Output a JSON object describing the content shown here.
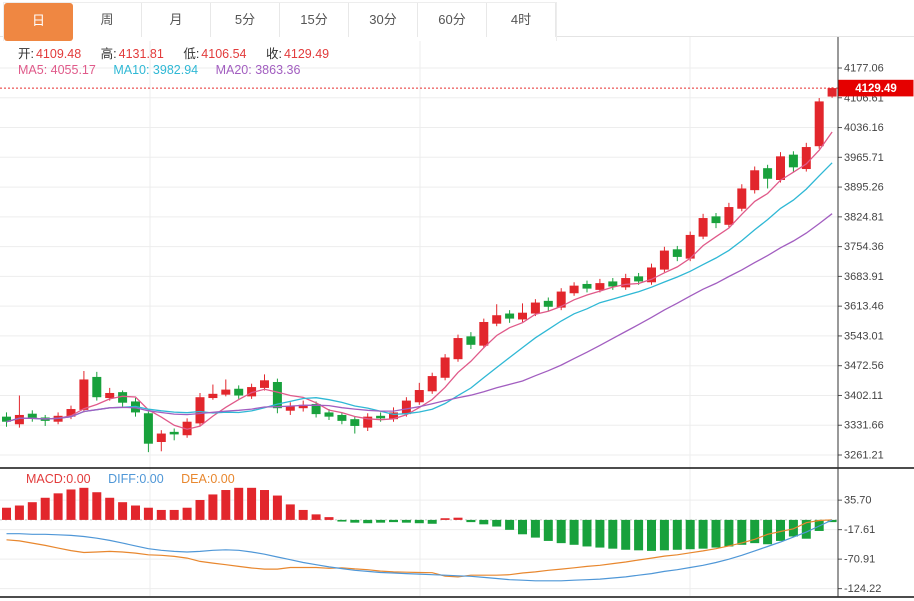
{
  "tabs": [
    {
      "key": "day",
      "label": "日",
      "active": true
    },
    {
      "key": "week",
      "label": "周",
      "active": false
    },
    {
      "key": "month",
      "label": "月",
      "active": false
    },
    {
      "key": "5min",
      "label": "5分",
      "active": false
    },
    {
      "key": "15min",
      "label": "15分",
      "active": false
    },
    {
      "key": "30min",
      "label": "30分",
      "active": false
    },
    {
      "key": "60min",
      "label": "60分",
      "active": false
    },
    {
      "key": "4hour",
      "label": "4时",
      "active": false
    }
  ],
  "ohlc": {
    "open_label": "开:",
    "open": "4109.48",
    "high_label": "高:",
    "high": "4131.81",
    "low_label": "低:",
    "low": "4106.54",
    "close_label": "收:",
    "close": "4129.49"
  },
  "ma_legend": {
    "ma5": "MA5: 4055.17",
    "ma10": "MA10: 3982.94",
    "ma20": "MA20: 3863.36"
  },
  "macd_legend": {
    "macd": "MACD:0.00",
    "diff": "DIFF:0.00",
    "dea": "DEA:0.00"
  },
  "price_badge": "4129.49",
  "colors": {
    "up": "#e2262c",
    "down": "#18a13c",
    "ma5": "#e05a8a",
    "ma10": "#2fb8d5",
    "ma20": "#a25ec0",
    "diff": "#4f97d7",
    "dea": "#e8872e",
    "badge": "#e50000",
    "accent_tab": "#ef8742",
    "value_red": "#e23b3b",
    "grid": "#ededed",
    "axis": "#444",
    "dark_line": "#111"
  },
  "chart_data": {
    "type": "candlestick",
    "title": "",
    "legend_position": "top-left-overlay",
    "grid": true,
    "panels": [
      {
        "name": "price",
        "y_ticks": [
          "4177.06",
          "4106.61",
          "4036.16",
          "3965.71",
          "3895.26",
          "3824.81",
          "3754.36",
          "3683.91",
          "3613.46",
          "3543.01",
          "3472.56",
          "3402.11",
          "3331.66",
          "3261.21"
        ],
        "current_price": 4129.49,
        "ma_overlays": [
          {
            "name": "MA5",
            "period": 5,
            "value": "4055.17"
          },
          {
            "name": "MA10",
            "period": 10,
            "value": "3982.94"
          },
          {
            "name": "MA20",
            "period": 20,
            "value": "3863.36"
          }
        ],
        "candles": [
          [
            3352,
            3362,
            3328,
            3340
          ],
          [
            3334,
            3402,
            3326,
            3356
          ],
          [
            3359,
            3367,
            3340,
            3348
          ],
          [
            3350,
            3356,
            3330,
            3342
          ],
          [
            3340,
            3362,
            3334,
            3354
          ],
          [
            3352,
            3378,
            3346,
            3370
          ],
          [
            3368,
            3460,
            3362,
            3440
          ],
          [
            3446,
            3458,
            3390,
            3398
          ],
          [
            3396,
            3420,
            3390,
            3408
          ],
          [
            3410,
            3414,
            3376,
            3385
          ],
          [
            3388,
            3396,
            3352,
            3362
          ],
          [
            3360,
            3364,
            3268,
            3288
          ],
          [
            3292,
            3320,
            3270,
            3312
          ],
          [
            3316,
            3324,
            3296,
            3310
          ],
          [
            3308,
            3348,
            3302,
            3340
          ],
          [
            3336,
            3408,
            3330,
            3398
          ],
          [
            3396,
            3428,
            3392,
            3406
          ],
          [
            3404,
            3440,
            3400,
            3416
          ],
          [
            3418,
            3426,
            3394,
            3402
          ],
          [
            3400,
            3430,
            3394,
            3422
          ],
          [
            3420,
            3452,
            3414,
            3438
          ],
          [
            3434,
            3442,
            3360,
            3372
          ],
          [
            3366,
            3386,
            3356,
            3376
          ],
          [
            3372,
            3390,
            3364,
            3380
          ],
          [
            3382,
            3388,
            3350,
            3358
          ],
          [
            3362,
            3370,
            3344,
            3352
          ],
          [
            3356,
            3362,
            3334,
            3342
          ],
          [
            3346,
            3352,
            3312,
            3330
          ],
          [
            3326,
            3360,
            3318,
            3352
          ],
          [
            3354,
            3362,
            3340,
            3348
          ],
          [
            3346,
            3374,
            3340,
            3362
          ],
          [
            3358,
            3398,
            3352,
            3390
          ],
          [
            3386,
            3432,
            3380,
            3415
          ],
          [
            3412,
            3456,
            3406,
            3448
          ],
          [
            3444,
            3500,
            3438,
            3492
          ],
          [
            3488,
            3546,
            3482,
            3538
          ],
          [
            3542,
            3552,
            3512,
            3522
          ],
          [
            3520,
            3584,
            3514,
            3576
          ],
          [
            3572,
            3618,
            3566,
            3592
          ],
          [
            3596,
            3604,
            3574,
            3584
          ],
          [
            3582,
            3620,
            3576,
            3598
          ],
          [
            3596,
            3630,
            3590,
            3622
          ],
          [
            3626,
            3634,
            3602,
            3612
          ],
          [
            3610,
            3656,
            3604,
            3648
          ],
          [
            3644,
            3670,
            3638,
            3662
          ],
          [
            3666,
            3674,
            3646,
            3655
          ],
          [
            3652,
            3678,
            3646,
            3668
          ],
          [
            3672,
            3680,
            3652,
            3660
          ],
          [
            3658,
            3690,
            3652,
            3680
          ],
          [
            3684,
            3692,
            3664,
            3672
          ],
          [
            3670,
            3714,
            3664,
            3705
          ],
          [
            3700,
            3754,
            3694,
            3745
          ],
          [
            3748,
            3756,
            3720,
            3730
          ],
          [
            3726,
            3790,
            3720,
            3782
          ],
          [
            3778,
            3832,
            3772,
            3822
          ],
          [
            3826,
            3834,
            3798,
            3810
          ],
          [
            3806,
            3858,
            3800,
            3848
          ],
          [
            3844,
            3902,
            3838,
            3892
          ],
          [
            3888,
            3944,
            3880,
            3935
          ],
          [
            3940,
            3948,
            3892,
            3915
          ],
          [
            3912,
            3978,
            3906,
            3968
          ],
          [
            3972,
            3980,
            3930,
            3942
          ],
          [
            3938,
            4000,
            3932,
            3990
          ],
          [
            3992,
            4106,
            3986,
            4098
          ],
          [
            4109.48,
            4131.81,
            4106.54,
            4129.49
          ]
        ]
      },
      {
        "name": "macd",
        "y_ticks": [
          "35.70",
          "-17.61",
          "-70.91",
          "-124.22"
        ],
        "histogram": [
          22,
          26,
          32,
          40,
          48,
          55,
          58,
          50,
          40,
          32,
          26,
          22,
          18,
          18,
          22,
          36,
          46,
          54,
          58,
          58,
          54,
          44,
          28,
          18,
          10,
          5,
          -3,
          -5,
          -6,
          -5,
          -4,
          -5,
          -6,
          -7,
          3,
          4,
          -4,
          -8,
          -12,
          -18,
          -26,
          -32,
          -38,
          -42,
          -45,
          -48,
          -50,
          -52,
          -54,
          -55,
          -56,
          -55,
          -54,
          -53,
          -52,
          -50,
          -48,
          -45,
          -42,
          -44,
          -38,
          -30,
          -34,
          -20,
          -4
        ],
        "diff_line": [
          -25,
          -25,
          -26,
          -26,
          -27,
          -28,
          -30,
          -33,
          -37,
          -42,
          -47,
          -52,
          -55,
          -57,
          -58,
          -57,
          -55,
          -54,
          -55,
          -58,
          -62,
          -67,
          -72,
          -77,
          -81,
          -85,
          -88,
          -91,
          -93,
          -95,
          -96,
          -97,
          -98,
          -99,
          -100,
          -101,
          -102,
          -104,
          -106,
          -108,
          -109,
          -110,
          -110,
          -110,
          -109,
          -108,
          -107,
          -105,
          -103,
          -100,
          -97,
          -93,
          -90,
          -86,
          -82,
          -77,
          -71,
          -64,
          -56,
          -48,
          -40,
          -31,
          -22,
          -11,
          0
        ],
        "dea_line": [
          -36,
          -38,
          -42,
          -46,
          -51,
          -55.5,
          -59,
          -58,
          -57,
          -58,
          -60,
          -63,
          -64,
          -66,
          -69,
          -75,
          -78,
          -81,
          -84,
          -87,
          -89,
          -89,
          -86,
          -86,
          -86,
          -87.5,
          -86.5,
          -88.5,
          -90,
          -92.5,
          -94,
          -94.5,
          -95,
          -95.5,
          -101.5,
          -103,
          -100,
          -100,
          -100,
          -99,
          -96,
          -94,
          -91,
          -89,
          -86.5,
          -84,
          -82,
          -79,
          -76,
          -72.5,
          -69,
          -65.5,
          -63,
          -59.5,
          -56,
          -52,
          -47,
          -41.5,
          -35,
          -26,
          -21,
          -16,
          -5,
          -1,
          0
        ],
        "final_values": {
          "MACD": "0.00",
          "DIFF": "0.00",
          "DEA": "0.00"
        }
      }
    ]
  }
}
